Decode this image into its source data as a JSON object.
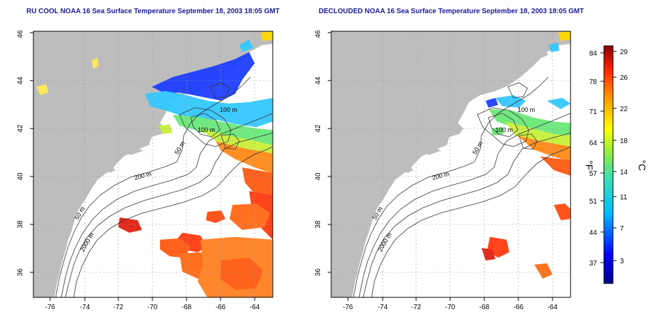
{
  "panels": [
    {
      "title": "RU COOL NOAA 16 Sea Surface Temperature September 18, 2003 18:05 GMT",
      "contour_labels": [
        "100 m",
        "100 m",
        "50 m",
        "200 m",
        "50 m",
        "2000 m"
      ]
    },
    {
      "title": "DECLOUDED NOAA 16 Sea Surface Temperature September 18, 2003 18:05 GMT",
      "contour_labels": [
        "100 m",
        "100 m",
        "50 m",
        "200 m",
        "50 m",
        "2000 m"
      ]
    }
  ],
  "axes": {
    "x_ticks": [
      "-76",
      "-74",
      "-72",
      "-70",
      "-68",
      "-66",
      "-64"
    ],
    "y_ticks": [
      "36",
      "38",
      "40",
      "42",
      "44",
      "46"
    ]
  },
  "colorbar": {
    "fahrenheit_ticks": [
      "84",
      "78",
      "71",
      "64",
      "57",
      "51",
      "44",
      "37"
    ],
    "celsius_ticks": [
      "29",
      "26",
      "22",
      "18",
      "14",
      "11",
      "7",
      "3"
    ],
    "label_f": "°F",
    "label_c": "°C"
  },
  "colors": {
    "land": "#bdbdbd",
    "ocean": "#ffffff",
    "title": "#1a1a9a",
    "grid": "#999999",
    "contour": "#333333"
  }
}
